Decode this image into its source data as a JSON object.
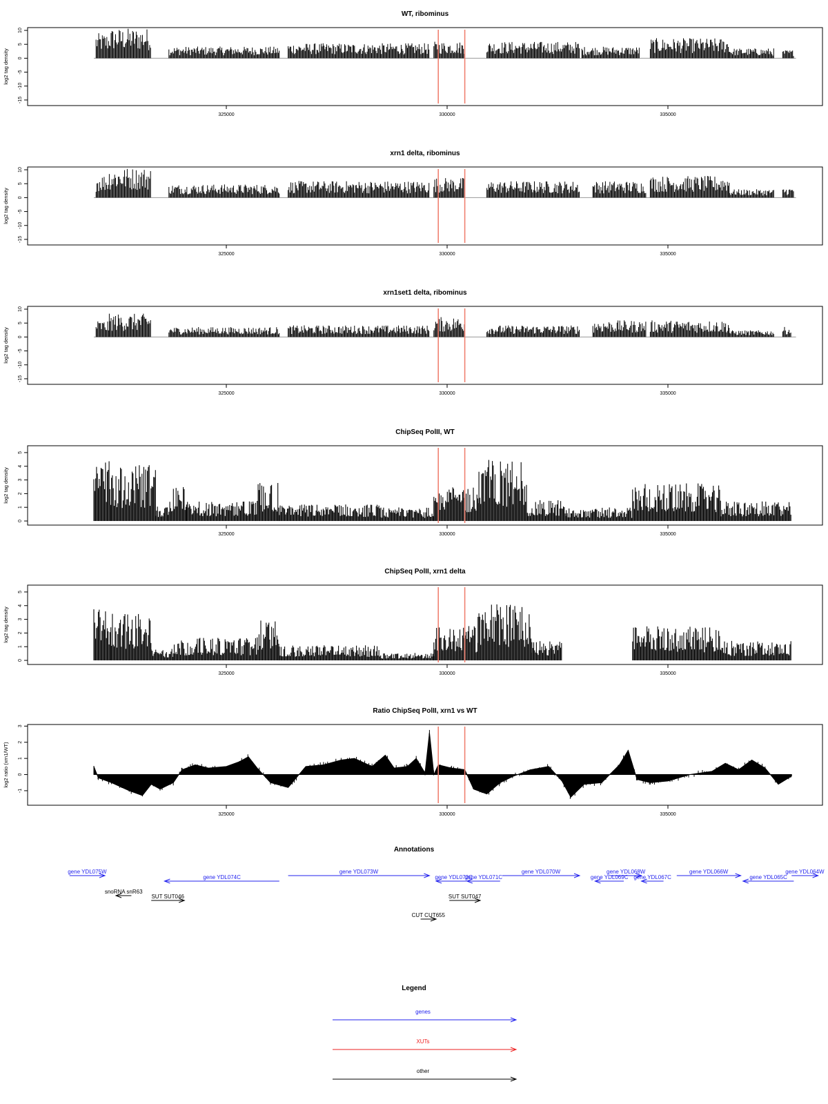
{
  "chart_data": [
    {
      "type": "bar",
      "title": "WT, ribominus",
      "ylabel": "log2 tag density",
      "xlim": [
        320500,
        338500
      ],
      "ylim": [
        -17,
        11
      ],
      "yticks": [
        10,
        5,
        0,
        -5,
        -10,
        -15
      ],
      "xticks": [
        325000,
        330000,
        335000
      ],
      "xtick_labels": [
        "325000",
        "330000",
        "335000"
      ],
      "markers": [
        329800,
        330400
      ],
      "segments": [
        {
          "from": 322050,
          "to": 322350,
          "strand": "+",
          "v": 7.5
        },
        {
          "from": 322350,
          "to": 323300,
          "strand": "-",
          "v": -9
        },
        {
          "from": 323700,
          "to": 326200,
          "strand": "-",
          "v": -3.5
        },
        {
          "from": 326400,
          "to": 329600,
          "strand": "+",
          "v": 4.5
        },
        {
          "from": 329700,
          "to": 330400,
          "strand": "-",
          "v": -5
        },
        {
          "from": 330900,
          "to": 333000,
          "strand": "+",
          "v": 5
        },
        {
          "from": 333050,
          "to": 334350,
          "strand": "-",
          "v": -3.5
        },
        {
          "from": 334600,
          "to": 336400,
          "strand": "+",
          "v": 6
        },
        {
          "from": 336400,
          "to": 337400,
          "strand": "-",
          "v": -3
        },
        {
          "from": 337600,
          "to": 337850,
          "strand": "+",
          "v": 2.5
        }
      ]
    },
    {
      "type": "bar",
      "title": "xrn1 delta, ribominus",
      "ylabel": "log2 tag density",
      "xlim": [
        320500,
        338500
      ],
      "ylim": [
        -17,
        11
      ],
      "yticks": [
        10,
        5,
        0,
        -5,
        -10,
        -15
      ],
      "xticks": [
        325000,
        330000,
        335000
      ],
      "xtick_labels": [
        "325000",
        "330000",
        "335000"
      ],
      "markers": [
        329800,
        330400
      ],
      "segments": [
        {
          "from": 322050,
          "to": 322350,
          "strand": "+",
          "v": 7
        },
        {
          "from": 322350,
          "to": 323300,
          "strand": "-",
          "v": -9
        },
        {
          "from": 323700,
          "to": 326200,
          "strand": "-",
          "v": -4
        },
        {
          "from": 326400,
          "to": 329600,
          "strand": "+",
          "v": 5
        },
        {
          "from": 329700,
          "to": 330400,
          "strand": "-",
          "v": -6
        },
        {
          "from": 330900,
          "to": 333000,
          "strand": "+",
          "v": 5
        },
        {
          "from": 333300,
          "to": 334500,
          "strand": "-",
          "v": -5
        },
        {
          "from": 334600,
          "to": 336400,
          "strand": "+",
          "v": 6.5
        },
        {
          "from": 336400,
          "to": 337400,
          "strand": "-",
          "v": -2.5
        },
        {
          "from": 337600,
          "to": 337850,
          "strand": "+",
          "v": 3
        }
      ]
    },
    {
      "type": "bar",
      "title": "xrn1set1 delta, ribominus",
      "ylabel": "log2 tag density",
      "xlim": [
        320500,
        338500
      ],
      "ylim": [
        -17,
        11
      ],
      "yticks": [
        10,
        5,
        0,
        -5,
        -10,
        -15
      ],
      "xticks": [
        325000,
        330000,
        335000
      ],
      "xtick_labels": [
        "325000",
        "330000",
        "335000"
      ],
      "markers": [
        329800,
        330400
      ],
      "segments": [
        {
          "from": 322050,
          "to": 322350,
          "strand": "+",
          "v": 5
        },
        {
          "from": 322350,
          "to": 323300,
          "strand": "-",
          "v": -7
        },
        {
          "from": 323700,
          "to": 326200,
          "strand": "-",
          "v": -3
        },
        {
          "from": 326400,
          "to": 329600,
          "strand": "+",
          "v": 3.5
        },
        {
          "from": 329700,
          "to": 330400,
          "strand": "-",
          "v": -6
        },
        {
          "from": 330900,
          "to": 333000,
          "strand": "+",
          "v": 3.5
        },
        {
          "from": 333300,
          "to": 334500,
          "strand": "-",
          "v": -5
        },
        {
          "from": 334600,
          "to": 336400,
          "strand": "+",
          "v": 5
        },
        {
          "from": 336400,
          "to": 337400,
          "strand": "-",
          "v": -2
        },
        {
          "from": 337600,
          "to": 337800,
          "strand": "+",
          "v": 3
        }
      ]
    },
    {
      "type": "bar",
      "title": "ChipSeq PolII, WT",
      "ylabel": "log2 tag density",
      "xlim": [
        320500,
        338500
      ],
      "ylim": [
        -0.3,
        5.5
      ],
      "yticks": [
        0,
        1,
        2,
        3,
        4,
        5
      ],
      "xticks": [
        325000,
        330000,
        335000
      ],
      "xtick_labels": [
        "325000",
        "330000",
        "335000"
      ],
      "markers": [
        329800,
        330400
      ],
      "segments": [
        {
          "from": 322000,
          "to": 322400,
          "v": 4.0
        },
        {
          "from": 322400,
          "to": 323400,
          "v": 3.8
        },
        {
          "from": 323400,
          "to": 323700,
          "v": 1.0
        },
        {
          "from": 323700,
          "to": 324100,
          "v": 2.4
        },
        {
          "from": 324100,
          "to": 325700,
          "v": 1.3
        },
        {
          "from": 325700,
          "to": 326200,
          "v": 2.6
        },
        {
          "from": 326200,
          "to": 328500,
          "v": 1.1
        },
        {
          "from": 328500,
          "to": 329700,
          "v": 0.9
        },
        {
          "from": 329700,
          "to": 330700,
          "v": 2.3
        },
        {
          "from": 330700,
          "to": 331800,
          "v": 4.1
        },
        {
          "from": 331800,
          "to": 332700,
          "v": 1.4
        },
        {
          "from": 332700,
          "to": 334200,
          "v": 0.9
        },
        {
          "from": 334200,
          "to": 336200,
          "v": 2.5
        },
        {
          "from": 336200,
          "to": 337800,
          "v": 1.3
        }
      ]
    },
    {
      "type": "bar",
      "title": "ChipSeq PolII, xrn1 delta",
      "ylabel": "log2 tag density",
      "xlim": [
        320500,
        338500
      ],
      "ylim": [
        -0.3,
        5.5
      ],
      "yticks": [
        0,
        1,
        2,
        3,
        4,
        5
      ],
      "xticks": [
        325000,
        330000,
        335000
      ],
      "xtick_labels": [
        "325000",
        "330000",
        "335000"
      ],
      "markers": [
        329800,
        330400
      ],
      "segments": [
        {
          "from": 322000,
          "to": 322400,
          "v": 3.7
        },
        {
          "from": 322400,
          "to": 323300,
          "v": 3.2
        },
        {
          "from": 323300,
          "to": 323800,
          "v": 0.8
        },
        {
          "from": 323800,
          "to": 324200,
          "v": 1.4
        },
        {
          "from": 324200,
          "to": 325700,
          "v": 1.5
        },
        {
          "from": 325700,
          "to": 326200,
          "v": 2.7
        },
        {
          "from": 326200,
          "to": 328500,
          "v": 1.0
        },
        {
          "from": 328500,
          "to": 329700,
          "v": 0.5
        },
        {
          "from": 329700,
          "to": 330700,
          "v": 2.3
        },
        {
          "from": 330700,
          "to": 331900,
          "v": 3.8
        },
        {
          "from": 331900,
          "to": 332600,
          "v": 1.3
        },
        {
          "from": 332600,
          "to": 334200,
          "v": 0.0
        },
        {
          "from": 334200,
          "to": 336200,
          "v": 2.3
        },
        {
          "from": 336200,
          "to": 337800,
          "v": 1.3
        }
      ]
    },
    {
      "type": "area",
      "title": "Ratio ChipSeq PolII, xrn1 vs WT",
      "ylabel": "log2 ratio (xrn1/WT)",
      "xlim": [
        320500,
        338500
      ],
      "ylim": [
        -1.9,
        3.1
      ],
      "yticks": [
        3,
        2,
        1,
        0,
        -1
      ],
      "xticks": [
        325000,
        330000,
        335000
      ],
      "xtick_labels": [
        "325000",
        "330000",
        "335000"
      ],
      "markers": [
        329800,
        330400
      ],
      "x": [
        322000,
        322100,
        322400,
        322800,
        323100,
        323300,
        323500,
        323800,
        324000,
        324300,
        324600,
        325000,
        325300,
        325500,
        325700,
        326000,
        326400,
        326800,
        327200,
        327600,
        327900,
        328300,
        328600,
        328800,
        329100,
        329300,
        329500,
        329600,
        329700,
        329800,
        330100,
        330400,
        330600,
        330900,
        331200,
        331500,
        331900,
        332300,
        332600,
        332800,
        333100,
        333500,
        333900,
        334100,
        334300,
        334600,
        335000,
        335500,
        336000,
        336300,
        336600,
        336900,
        337200,
        337500,
        337800
      ],
      "values": [
        0.5,
        -0.2,
        -0.5,
        -1.0,
        -1.3,
        -0.6,
        -0.9,
        -0.5,
        0.3,
        0.6,
        0.4,
        0.5,
        0.8,
        1.1,
        0.4,
        -0.5,
        -0.8,
        0.5,
        0.6,
        0.9,
        1.0,
        0.5,
        1.2,
        0.4,
        0.5,
        1.0,
        0.1,
        2.6,
        0.0,
        0.6,
        0.4,
        0.3,
        -0.9,
        -1.2,
        -0.5,
        -0.1,
        0.3,
        0.5,
        -0.4,
        -1.4,
        -0.6,
        -0.5,
        0.6,
        1.5,
        -0.3,
        -0.5,
        -0.4,
        0.0,
        0.2,
        0.7,
        0.3,
        0.9,
        0.4,
        -0.6,
        -0.1
      ]
    }
  ],
  "annotations": {
    "title": "Annotations",
    "features": [
      {
        "label": "gene YDL075W",
        "kind": "gene",
        "from": 321450,
        "to": 322250,
        "strand": "+",
        "row": 0
      },
      {
        "label": "gene YDL074C",
        "kind": "gene",
        "from": 323600,
        "to": 326200,
        "strand": "-",
        "row": 1
      },
      {
        "label": "gene YDL073W",
        "kind": "gene",
        "from": 326400,
        "to": 329600,
        "strand": "+",
        "row": 0
      },
      {
        "label": "gene YDL072C",
        "kind": "gene",
        "from": 329750,
        "to": 330550,
        "strand": "-",
        "row": 1
      },
      {
        "label": "gene YDL071C",
        "kind": "gene",
        "from": 330450,
        "to": 331200,
        "strand": "-",
        "row": 1
      },
      {
        "label": "gene YDL070W",
        "kind": "gene",
        "from": 331250,
        "to": 333000,
        "strand": "+",
        "row": 0
      },
      {
        "label": "gene YDL068W",
        "kind": "gene",
        "from": 333700,
        "to": 334400,
        "strand": "+",
        "row": 0
      },
      {
        "label": "gene YDL069C",
        "kind": "gene",
        "from": 333350,
        "to": 334000,
        "strand": "-",
        "row": 1
      },
      {
        "label": "gene YDL067C",
        "kind": "gene",
        "from": 334400,
        "to": 334900,
        "strand": "-",
        "row": 1
      },
      {
        "label": "gene YDL066W",
        "kind": "gene",
        "from": 335200,
        "to": 336650,
        "strand": "+",
        "row": 0
      },
      {
        "label": "gene YDL065C",
        "kind": "gene",
        "from": 336700,
        "to": 337850,
        "strand": "-",
        "row": 1
      },
      {
        "label": "gene YDL064W",
        "kind": "gene",
        "from": 337800,
        "to": 338400,
        "strand": "+",
        "row": 0
      },
      {
        "label": "snoRNA snR63",
        "kind": "other",
        "from": 322500,
        "to": 322850,
        "strand": "-",
        "row": 2
      },
      {
        "label": "SUT SUT046",
        "kind": "other",
        "from": 323300,
        "to": 324050,
        "strand": "+",
        "row": 3
      },
      {
        "label": "SUT SUT047",
        "kind": "other",
        "from": 330050,
        "to": 330750,
        "strand": "+",
        "row": 3
      },
      {
        "label": "CUT CUT655",
        "kind": "other",
        "from": 329400,
        "to": 329750,
        "strand": "+",
        "row": 4
      }
    ]
  },
  "legend": {
    "title": "Legend",
    "items": [
      {
        "label": "genes",
        "color": "#2222ee"
      },
      {
        "label": "XUTs",
        "color": "#ee2222"
      },
      {
        "label": "other",
        "color": "#000000"
      }
    ]
  },
  "colors": {
    "marker": "#f08070",
    "bars": "#000000",
    "zero_line": "#999999",
    "gene": "#2222ee",
    "other": "#000000"
  }
}
